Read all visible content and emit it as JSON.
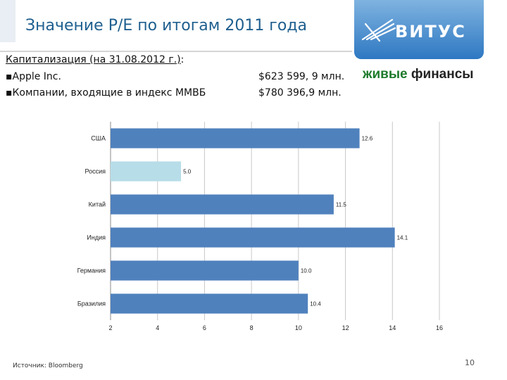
{
  "header": {
    "title": "Значение P/E по итогам 2011 года",
    "logo": "ВИТУС"
  },
  "capitalization": {
    "heading_prefix": "Капитализация (на ",
    "heading_date": "31.08.2012 г.)",
    "heading_suffix": ":",
    "rows": [
      {
        "label": "▪Apple Inc.",
        "value": "$623 599, 9 млн."
      },
      {
        "label": "▪Компании, входящие в индекс ММВБ",
        "value": "$780 396,9 млн."
      }
    ]
  },
  "brand": {
    "part1": "живые",
    "part2": " финансы"
  },
  "source": "Источник: Bloomberg",
  "page_number": "10",
  "colors": {
    "bar": "#4f81bd",
    "highlight_bar": "#b7dde8",
    "title": "#1f5f8f"
  },
  "chart_data": {
    "type": "bar",
    "orientation": "horizontal",
    "categories": [
      "США",
      "Россия",
      "Китай",
      "Индия",
      "Германия",
      "Бразилия"
    ],
    "values": [
      12.6,
      5.0,
      11.5,
      14.1,
      10.0,
      10.4
    ],
    "value_labels": [
      "12.6",
      "5.0",
      "11.5",
      "14.1",
      "10.0",
      "10.4"
    ],
    "highlight": "Россия",
    "xlim": [
      2,
      16
    ],
    "xticks": [
      "2",
      "4",
      "6",
      "8",
      "10",
      "12",
      "14",
      "16"
    ],
    "grid": true
  }
}
